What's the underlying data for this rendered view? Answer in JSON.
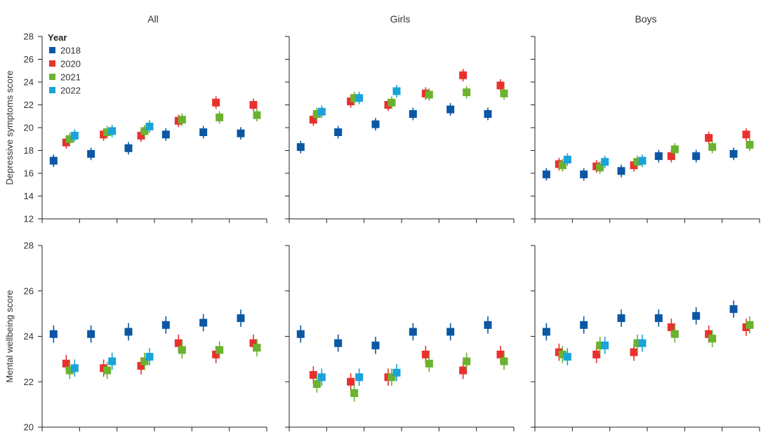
{
  "legend": {
    "title": "Year",
    "entries": [
      {
        "label": "2018",
        "color": "#0b57a4"
      },
      {
        "label": "2020",
        "color": "#e8312e"
      },
      {
        "label": "2021",
        "color": "#6bb22f"
      },
      {
        "label": "2022",
        "color": "#1aa3d9"
      }
    ]
  },
  "chart_data": [
    {
      "type": "scatter",
      "title": "All",
      "ylabel": "Depressive symptoms score",
      "ylim": [
        12,
        28
      ],
      "yticks": [
        12,
        14,
        16,
        18,
        20,
        22,
        24,
        26,
        28
      ],
      "groups": 6,
      "series": [
        {
          "name": "2018",
          "values": [
            17.1,
            17.7,
            18.2,
            19.4,
            19.6,
            19.5
          ]
        },
        {
          "name": "2020",
          "values": [
            18.7,
            19.4,
            19.3,
            20.6,
            22.2,
            22.0
          ]
        },
        {
          "name": "2021",
          "values": [
            19.0,
            19.6,
            19.7,
            20.7,
            20.9,
            21.1
          ]
        },
        {
          "name": "2022",
          "values": [
            19.3,
            19.7,
            20.1,
            null,
            null,
            null
          ]
        }
      ]
    },
    {
      "type": "scatter",
      "title": "Girls",
      "ylabel": "",
      "ylim": [
        12,
        28
      ],
      "yticks": [
        12,
        14,
        16,
        18,
        20,
        22,
        24,
        26,
        28
      ],
      "groups": 6,
      "series": [
        {
          "name": "2018",
          "values": [
            18.3,
            19.6,
            20.3,
            21.2,
            21.6,
            21.2
          ]
        },
        {
          "name": "2020",
          "values": [
            20.7,
            22.3,
            22.0,
            23.0,
            24.6,
            23.7
          ]
        },
        {
          "name": "2021",
          "values": [
            21.2,
            22.6,
            22.2,
            22.9,
            23.1,
            23.0
          ]
        },
        {
          "name": "2022",
          "values": [
            21.4,
            22.6,
            23.2,
            null,
            null,
            null
          ]
        }
      ]
    },
    {
      "type": "scatter",
      "title": "Boys",
      "ylabel": "",
      "ylim": [
        12,
        28
      ],
      "yticks": [
        12,
        14,
        16,
        18,
        20,
        22,
        24,
        26,
        28
      ],
      "groups": 6,
      "series": [
        {
          "name": "2018",
          "values": [
            15.9,
            15.9,
            16.2,
            17.5,
            17.5,
            17.7
          ]
        },
        {
          "name": "2020",
          "values": [
            16.8,
            16.6,
            16.7,
            17.5,
            19.1,
            19.4
          ]
        },
        {
          "name": "2021",
          "values": [
            16.7,
            16.5,
            17.0,
            18.1,
            18.3,
            18.5
          ]
        },
        {
          "name": "2022",
          "values": [
            17.2,
            17.0,
            17.1,
            null,
            null,
            null
          ]
        }
      ]
    },
    {
      "type": "scatter",
      "title": "",
      "ylabel": "Mental wellbeing score",
      "ylim": [
        20,
        28
      ],
      "yticks": [
        20,
        22,
        24,
        26,
        28
      ],
      "groups": 6,
      "series": [
        {
          "name": "2018",
          "values": [
            24.1,
            24.1,
            24.2,
            24.5,
            24.6,
            24.8
          ]
        },
        {
          "name": "2020",
          "values": [
            22.8,
            22.6,
            22.7,
            23.7,
            23.2,
            23.7
          ]
        },
        {
          "name": "2021",
          "values": [
            22.5,
            22.5,
            22.9,
            23.4,
            23.4,
            23.5
          ]
        },
        {
          "name": "2022",
          "values": [
            22.6,
            22.9,
            23.1,
            null,
            null,
            null
          ]
        }
      ]
    },
    {
      "type": "scatter",
      "title": "",
      "ylabel": "",
      "ylim": [
        20,
        28
      ],
      "yticks": [
        20,
        22,
        24,
        26,
        28
      ],
      "groups": 6,
      "series": [
        {
          "name": "2018",
          "values": [
            24.1,
            23.7,
            23.6,
            24.2,
            24.2,
            24.5
          ]
        },
        {
          "name": "2020",
          "values": [
            22.3,
            22.0,
            22.2,
            23.2,
            22.5,
            23.2
          ]
        },
        {
          "name": "2021",
          "values": [
            21.9,
            21.5,
            22.2,
            22.8,
            22.9,
            22.9
          ]
        },
        {
          "name": "2022",
          "values": [
            22.2,
            22.2,
            22.4,
            null,
            null,
            null
          ]
        }
      ]
    },
    {
      "type": "scatter",
      "title": "",
      "ylabel": "",
      "ylim": [
        20,
        28
      ],
      "yticks": [
        20,
        22,
        24,
        26,
        28
      ],
      "groups": 6,
      "series": [
        {
          "name": "2018",
          "values": [
            24.2,
            24.5,
            24.8,
            24.8,
            24.9,
            25.2
          ]
        },
        {
          "name": "2020",
          "values": [
            23.3,
            23.2,
            23.3,
            24.4,
            24.1,
            24.4
          ]
        },
        {
          "name": "2021",
          "values": [
            23.2,
            23.6,
            23.7,
            24.1,
            23.9,
            24.5
          ]
        },
        {
          "name": "2022",
          "values": [
            23.1,
            23.6,
            23.7,
            null,
            null,
            null
          ]
        }
      ]
    }
  ]
}
